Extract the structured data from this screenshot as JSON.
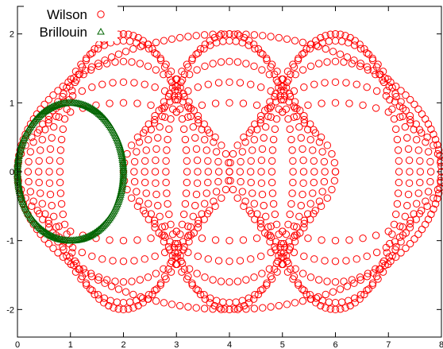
{
  "chart_data": {
    "type": "scatter",
    "title": "",
    "xlabel": "",
    "ylabel": "",
    "xlim": [
      0,
      8
    ],
    "ylim": [
      -2.4,
      2.4
    ],
    "xticks": [
      0,
      1,
      2,
      3,
      4,
      5,
      6,
      7,
      8
    ],
    "yticks": [
      -2,
      -1,
      0,
      1,
      2
    ],
    "xtick_labels": [
      "0",
      "1",
      "2",
      "3",
      "4",
      "5",
      "6",
      "7",
      "8"
    ],
    "ytick_labels": [
      "-2",
      "-1",
      "0",
      "1",
      "2"
    ],
    "legend_position": "top-left",
    "grid": false,
    "series": [
      {
        "name": "Wilson",
        "marker": "open-circle",
        "color": "#ff0000",
        "description_of_distribution": "eigenvalues filling the ellipse (x-4)^2/16 + y^2/4 <= 1, concentrated on nested ellipse families centered at x=2,4,6 with isolated real points at x=0,4,6,8",
        "family_centers": [
          2,
          4,
          6
        ],
        "family_radii_x": [
          2.0,
          1.8,
          1.6,
          1.4,
          1.2
        ],
        "family_radii_y": [
          1.0,
          1.3,
          1.6,
          1.9,
          2.0
        ],
        "real_points": [
          0,
          4,
          6,
          8
        ]
      },
      {
        "name": "Brillouin",
        "marker": "open-triangle",
        "color": "#006400",
        "description_of_distribution": "eigenvalues on the circle |z-1| = 1 (ellipse center 1, half-width 1, half-height 1), densest near x=0 and x=2",
        "center": [
          1,
          0
        ],
        "radius_x": 1.0,
        "radius_y": 1.0
      }
    ]
  }
}
